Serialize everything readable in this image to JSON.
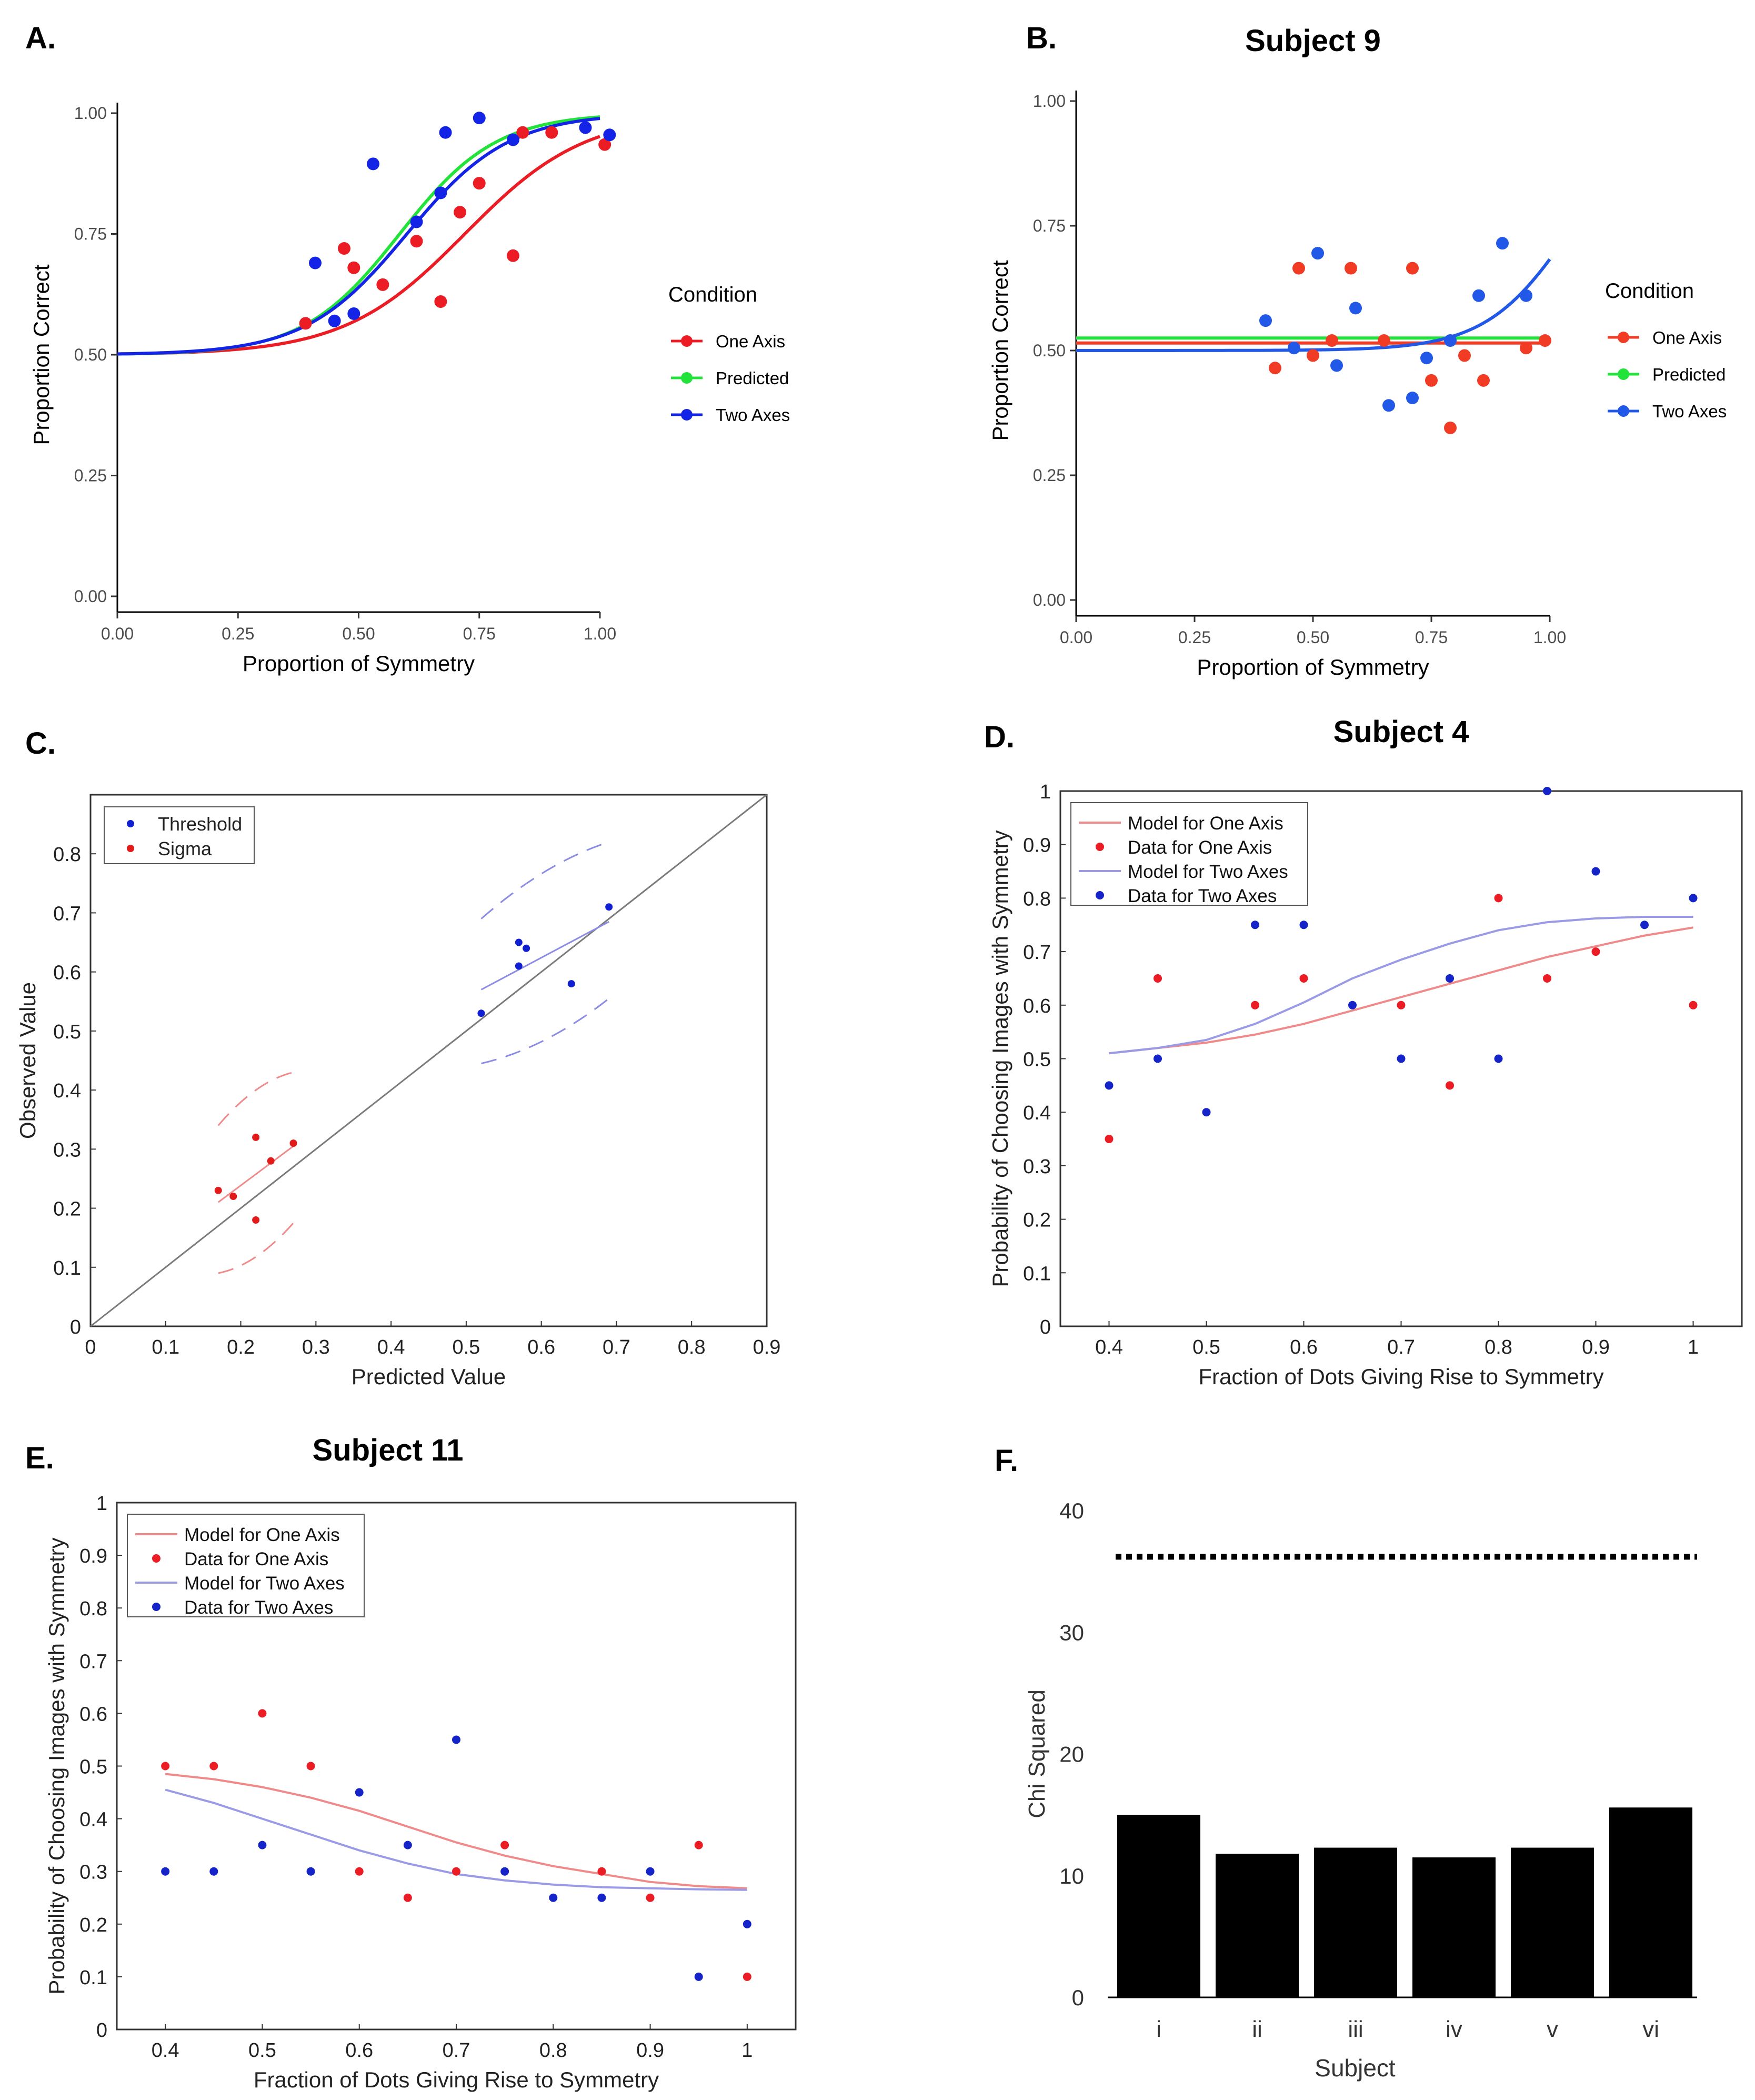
{
  "figure": {
    "panel_letters": [
      "A.",
      "B.",
      "C.",
      "D.",
      "E.",
      "F."
    ]
  },
  "chart_data": [
    {
      "panel": "A.",
      "type": "scatter",
      "title": "",
      "xlabel": "Proportion of Symmetry",
      "ylabel": "Proportion Correct",
      "xlim": [
        0,
        1
      ],
      "ylim": [
        0,
        1
      ],
      "xticks": [
        0,
        0.25,
        0.5,
        0.75,
        1
      ],
      "yticks": [
        0,
        0.25,
        0.5,
        0.75,
        1
      ],
      "xtick_labels": [
        "0.00",
        "0.25",
        "0.50",
        "0.75",
        "1.00"
      ],
      "ytick_labels": [
        "0.00",
        "0.25",
        "0.50",
        "0.75",
        "1.00"
      ],
      "legend_title": "Condition",
      "legend_placement": "right, outside",
      "series": [
        {
          "name": "One Axis",
          "color": "#ec1c24",
          "points": [
            [
              0.39,
              0.565
            ],
            [
              0.47,
              0.72
            ],
            [
              0.49,
              0.68
            ],
            [
              0.55,
              0.645
            ],
            [
              0.62,
              0.735
            ],
            [
              0.67,
              0.61
            ],
            [
              0.71,
              0.795
            ],
            [
              0.75,
              0.855
            ],
            [
              0.82,
              0.705
            ],
            [
              0.84,
              0.96
            ],
            [
              0.9,
              0.96
            ],
            [
              1.01,
              0.935
            ]
          ],
          "curve": {
            "x0": 0.72,
            "k": 8
          }
        },
        {
          "name": "Predicted",
          "color": "#22e33a",
          "points": [],
          "curve": {
            "x0": 0.585,
            "k": 10
          }
        },
        {
          "name": "Two Axes",
          "color": "#1424e6",
          "points": [
            [
              0.41,
              0.69
            ],
            [
              0.45,
              0.57
            ],
            [
              0.49,
              0.585
            ],
            [
              0.53,
              0.895
            ],
            [
              0.62,
              0.775
            ],
            [
              0.67,
              0.835
            ],
            [
              0.68,
              0.96
            ],
            [
              0.75,
              0.99
            ],
            [
              0.82,
              0.945
            ],
            [
              0.97,
              0.97
            ],
            [
              1.02,
              0.955
            ]
          ],
          "curve": {
            "x0": 0.6,
            "k": 9.5
          }
        }
      ]
    },
    {
      "panel": "B.",
      "type": "scatter",
      "title": "Subject 9",
      "xlabel": "Proportion of Symmetry",
      "ylabel": "Proportion Correct",
      "xlim": [
        0,
        1
      ],
      "ylim": [
        0,
        1
      ],
      "xticks": [
        0,
        0.25,
        0.5,
        0.75,
        1
      ],
      "yticks": [
        0,
        0.25,
        0.5,
        0.75,
        1
      ],
      "xtick_labels": [
        "0.00",
        "0.25",
        "0.50",
        "0.75",
        "1.00"
      ],
      "ytick_labels": [
        "0.00",
        "0.25",
        "0.50",
        "0.75",
        "1.00"
      ],
      "legend_title": "Condition",
      "legend_placement": "right, outside",
      "series": [
        {
          "name": "One Axis",
          "color": "#f23b24",
          "points": [
            [
              0.42,
              0.465
            ],
            [
              0.47,
              0.665
            ],
            [
              0.5,
              0.49
            ],
            [
              0.54,
              0.52
            ],
            [
              0.58,
              0.665
            ],
            [
              0.65,
              0.52
            ],
            [
              0.71,
              0.665
            ],
            [
              0.75,
              0.44
            ],
            [
              0.79,
              0.345
            ],
            [
              0.82,
              0.49
            ],
            [
              0.86,
              0.44
            ],
            [
              0.95,
              0.505
            ],
            [
              0.99,
              0.52
            ]
          ],
          "line": {
            "y": 0.515
          }
        },
        {
          "name": "Predicted",
          "color": "#22e33a",
          "points": [],
          "line": {
            "y": 0.525
          }
        },
        {
          "name": "Two Axes",
          "color": "#2158e8",
          "points": [
            [
              0.4,
              0.56
            ],
            [
              0.46,
              0.505
            ],
            [
              0.51,
              0.695
            ],
            [
              0.55,
              0.47
            ],
            [
              0.59,
              0.585
            ],
            [
              0.66,
              0.39
            ],
            [
              0.71,
              0.405
            ],
            [
              0.74,
              0.485
            ],
            [
              0.79,
              0.52
            ],
            [
              0.85,
              0.61
            ],
            [
              0.9,
              0.715
            ],
            [
              0.95,
              0.61
            ]
          ],
          "curve": {
            "x0": 1.05,
            "k": 11,
            "base": 0.5
          }
        }
      ]
    },
    {
      "panel": "C.",
      "type": "scatter",
      "title": "",
      "xlabel": "Predicted Value",
      "ylabel": "Observed Value",
      "xlim": [
        0,
        0.9
      ],
      "ylim": [
        0,
        0.9
      ],
      "xticks": [
        0,
        0.1,
        0.2,
        0.3,
        0.4,
        0.5,
        0.6,
        0.7,
        0.8,
        0.9
      ],
      "yticks": [
        0,
        0.1,
        0.2,
        0.3,
        0.4,
        0.5,
        0.6,
        0.7,
        0.8
      ],
      "xtick_labels": [
        "0",
        "0.1",
        "0.2",
        "0.3",
        "0.4",
        "0.5",
        "0.6",
        "0.7",
        "0.8",
        "0.9"
      ],
      "ytick_labels": [
        "0",
        "0.1",
        "0.2",
        "0.3",
        "0.4",
        "0.5",
        "0.6",
        "0.7",
        "0.8"
      ],
      "legend_placement": "top-left",
      "identity_line": true,
      "series": [
        {
          "name": "Threshold",
          "color": "#0f1fd1",
          "points": [
            [
              0.52,
              0.53
            ],
            [
              0.57,
              0.65
            ],
            [
              0.57,
              0.61
            ],
            [
              0.58,
              0.64
            ],
            [
              0.64,
              0.58
            ],
            [
              0.69,
              0.71
            ]
          ],
          "fit": {
            "x": [
              0.52,
              0.69
            ],
            "y": [
              0.57,
              0.685
            ]
          },
          "ci_upper": {
            "x": [
              0.52,
              0.69
            ],
            "y": [
              0.69,
              0.82
            ]
          },
          "ci_lower": {
            "x": [
              0.52,
              0.69
            ],
            "y": [
              0.445,
              0.555
            ]
          }
        },
        {
          "name": "Sigma",
          "color": "#e31a1a",
          "points": [
            [
              0.17,
              0.23
            ],
            [
              0.19,
              0.22
            ],
            [
              0.22,
              0.32
            ],
            [
              0.22,
              0.18
            ],
            [
              0.24,
              0.28
            ],
            [
              0.27,
              0.31
            ]
          ],
          "fit": {
            "x": [
              0.17,
              0.27
            ],
            "y": [
              0.21,
              0.305
            ]
          },
          "ci_upper": {
            "x": [
              0.17,
              0.27
            ],
            "y": [
              0.34,
              0.43
            ]
          },
          "ci_lower": {
            "x": [
              0.17,
              0.27
            ],
            "y": [
              0.09,
              0.175
            ]
          }
        }
      ]
    },
    {
      "panel": "D.",
      "type": "scatter",
      "title": "Subject 4",
      "xlabel": "Fraction of Dots Giving Rise to Symmetry",
      "ylabel": "Probability of Choosing Images with Symmetry",
      "xlim": [
        0.35,
        1.05
      ],
      "ylim": [
        0,
        1
      ],
      "xticks": [
        0.4,
        0.5,
        0.6,
        0.7,
        0.8,
        0.9,
        1
      ],
      "yticks": [
        0,
        0.1,
        0.2,
        0.3,
        0.4,
        0.5,
        0.6,
        0.7,
        0.8,
        0.9,
        1
      ],
      "xtick_labels": [
        "0.4",
        "0.5",
        "0.6",
        "0.7",
        "0.8",
        "0.9",
        "1"
      ],
      "ytick_labels": [
        "0",
        "0.1",
        "0.2",
        "0.3",
        "0.4",
        "0.5",
        "0.6",
        "0.7",
        "0.8",
        "0.9",
        "1"
      ],
      "legend_placement": "top-left",
      "series": [
        {
          "name": "Model for One Axis",
          "kind": "line",
          "color": "#f08a8a",
          "x": [
            0.4,
            0.45,
            0.5,
            0.55,
            0.6,
            0.65,
            0.7,
            0.75,
            0.8,
            0.85,
            0.9,
            0.95,
            1.0
          ],
          "y": [
            0.51,
            0.52,
            0.53,
            0.545,
            0.565,
            0.59,
            0.615,
            0.64,
            0.665,
            0.69,
            0.71,
            0.73,
            0.745
          ]
        },
        {
          "name": "Data for One Axis",
          "kind": "points",
          "color": "#ec1c24",
          "x": [
            0.4,
            0.45,
            0.55,
            0.6,
            0.7,
            0.75,
            0.8,
            0.85,
            0.9,
            1.0
          ],
          "y": [
            0.35,
            0.65,
            0.6,
            0.65,
            0.6,
            0.45,
            0.8,
            0.65,
            0.7,
            0.6
          ]
        },
        {
          "name": "Model for Two Axes",
          "kind": "line",
          "color": "#9a9ae6",
          "x": [
            0.4,
            0.45,
            0.5,
            0.55,
            0.6,
            0.65,
            0.7,
            0.75,
            0.8,
            0.85,
            0.9,
            0.95,
            1.0
          ],
          "y": [
            0.51,
            0.52,
            0.535,
            0.565,
            0.605,
            0.65,
            0.685,
            0.715,
            0.74,
            0.755,
            0.762,
            0.765,
            0.765
          ]
        },
        {
          "name": "Data for Two Axes",
          "kind": "points",
          "color": "#1424c8",
          "x": [
            0.4,
            0.45,
            0.5,
            0.55,
            0.6,
            0.65,
            0.7,
            0.75,
            0.8,
            0.85,
            0.9,
            0.95,
            1.0
          ],
          "y": [
            0.45,
            0.5,
            0.4,
            0.75,
            0.75,
            0.6,
            0.5,
            0.65,
            0.5,
            1.0,
            0.85,
            0.75,
            0.8
          ]
        }
      ]
    },
    {
      "panel": "E.",
      "type": "scatter",
      "title": "Subject 11",
      "xlabel": "Fraction of Dots Giving Rise to Symmetry",
      "ylabel": "Probability of Choosing Images with Symmetry",
      "xlim": [
        0.35,
        1.05
      ],
      "ylim": [
        0,
        1
      ],
      "xticks": [
        0.4,
        0.5,
        0.6,
        0.7,
        0.8,
        0.9,
        1
      ],
      "yticks": [
        0,
        0.1,
        0.2,
        0.3,
        0.4,
        0.5,
        0.6,
        0.7,
        0.8,
        0.9,
        1
      ],
      "xtick_labels": [
        "0.4",
        "0.5",
        "0.6",
        "0.7",
        "0.8",
        "0.9",
        "1"
      ],
      "ytick_labels": [
        "0",
        "0.1",
        "0.2",
        "0.3",
        "0.4",
        "0.5",
        "0.6",
        "0.7",
        "0.8",
        "0.9",
        "1"
      ],
      "legend_placement": "top-left",
      "series": [
        {
          "name": "Model for One Axis",
          "kind": "line",
          "color": "#f08a8a",
          "x": [
            0.4,
            0.45,
            0.5,
            0.55,
            0.6,
            0.65,
            0.7,
            0.75,
            0.8,
            0.85,
            0.9,
            0.95,
            1.0
          ],
          "y": [
            0.485,
            0.475,
            0.46,
            0.44,
            0.415,
            0.385,
            0.355,
            0.33,
            0.31,
            0.295,
            0.28,
            0.272,
            0.268
          ]
        },
        {
          "name": "Data for One Axis",
          "kind": "points",
          "color": "#ec1c24",
          "x": [
            0.4,
            0.45,
            0.5,
            0.55,
            0.6,
            0.65,
            0.7,
            0.75,
            0.85,
            0.9,
            0.95,
            1.0
          ],
          "y": [
            0.5,
            0.5,
            0.6,
            0.5,
            0.3,
            0.25,
            0.3,
            0.35,
            0.3,
            0.25,
            0.35,
            0.1
          ]
        },
        {
          "name": "Model for Two Axes",
          "kind": "line",
          "color": "#9a9ae6",
          "x": [
            0.4,
            0.45,
            0.5,
            0.55,
            0.6,
            0.65,
            0.7,
            0.75,
            0.8,
            0.85,
            0.9,
            0.95,
            1.0
          ],
          "y": [
            0.455,
            0.43,
            0.4,
            0.37,
            0.34,
            0.315,
            0.295,
            0.283,
            0.275,
            0.27,
            0.268,
            0.266,
            0.265
          ]
        },
        {
          "name": "Data for Two Axes",
          "kind": "points",
          "color": "#1424c8",
          "x": [
            0.4,
            0.45,
            0.5,
            0.55,
            0.6,
            0.65,
            0.7,
            0.75,
            0.8,
            0.85,
            0.9,
            0.95,
            1.0
          ],
          "y": [
            0.3,
            0.3,
            0.35,
            0.3,
            0.45,
            0.35,
            0.55,
            0.3,
            0.25,
            0.25,
            0.3,
            0.1,
            0.2
          ]
        }
      ]
    },
    {
      "panel": "F.",
      "type": "bar",
      "title": "",
      "xlabel": "Subject",
      "ylabel": "Chi Squared",
      "categories": [
        "i",
        "ii",
        "iii",
        "iv",
        "v",
        "vi"
      ],
      "values": [
        15.0,
        11.8,
        12.3,
        11.5,
        12.3,
        15.6
      ],
      "ylim": [
        0,
        40
      ],
      "yticks": [
        0,
        10,
        20,
        30,
        40
      ],
      "ytick_labels": [
        "0",
        "10",
        "20",
        "30",
        "40"
      ],
      "color": "#000000",
      "reference_line": {
        "y": 36.2,
        "style": "dotted"
      }
    }
  ]
}
